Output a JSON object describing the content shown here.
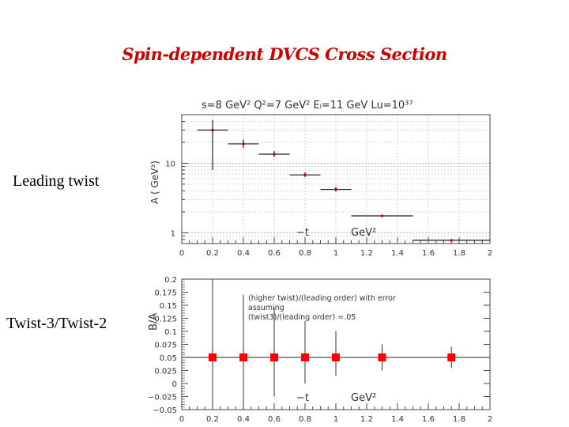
{
  "slide": {
    "title": "Spin-dependent DVCS  Cross Section",
    "label_top": "Leading twist",
    "label_bottom": "Twist-3/Twist-2"
  },
  "chart_data": [
    {
      "type": "scatter",
      "title": "s=8 GeV²   Q²=7 GeV²   Eₗ=11 GeV   Lu=10³⁷",
      "ylabel": "A  ( GeV³)",
      "xlabel_t": "−t",
      "xlabel_unit": "GeV²",
      "log_y": true,
      "xlim": [
        0,
        2
      ],
      "ylim": [
        0.7,
        50
      ],
      "x_ticks": [
        "0",
        "0.2",
        "0.4",
        "0.6",
        "0.8",
        "1",
        "1.2",
        "1.4",
        "1.6",
        "1.8",
        "2"
      ],
      "y_ticks": [
        "1",
        "10"
      ],
      "grid": true,
      "marker_color": "#cc0000",
      "series": [
        {
          "x": [
            0.2,
            0.4,
            0.6,
            0.8,
            1.0,
            1.3,
            1.75
          ],
          "x_low": [
            0.1,
            0.3,
            0.5,
            0.7,
            0.9,
            1.1,
            1.5
          ],
          "x_high": [
            0.3,
            0.5,
            0.7,
            0.9,
            1.1,
            1.5,
            2.0
          ],
          "y": [
            30,
            19,
            13.5,
            6.8,
            4.2,
            1.75,
            0.78
          ],
          "y_low": [
            8,
            16.5,
            12.3,
            6.3,
            3.9,
            1.7,
            0.76
          ],
          "y_high": [
            42,
            22,
            15,
            7.4,
            4.6,
            1.8,
            0.8
          ]
        }
      ]
    },
    {
      "type": "scatter",
      "ylabel": "B/A",
      "xlabel_t": "−t",
      "xlabel_unit": "GeV²",
      "xlim": [
        0,
        2
      ],
      "ylim": [
        -0.05,
        0.2
      ],
      "x_ticks": [
        "0",
        "0.2",
        "0.4",
        "0.6",
        "0.8",
        "1",
        "1.2",
        "1.4",
        "1.6",
        "1.8",
        "2"
      ],
      "y_ticks": [
        "−0.05",
        "−0.025",
        "0",
        "0.025",
        "0.05",
        "0.075",
        "0.1",
        "0.125",
        "0.15",
        "0.175",
        "0.2"
      ],
      "reference_line": 0.05,
      "annotation": [
        "(higher twist)/(leading order)     with error",
        "assuming",
        "(twist3)/(leading order) =.05"
      ],
      "marker_color": "#ff0000",
      "series": [
        {
          "x": [
            0.2,
            0.4,
            0.6,
            0.8,
            1.0,
            1.3,
            1.75
          ],
          "y": [
            0.05,
            0.05,
            0.05,
            0.05,
            0.05,
            0.05,
            0.05
          ],
          "y_low": [
            -0.05,
            -0.05,
            -0.025,
            0.0,
            0.015,
            0.025,
            0.03
          ],
          "y_high": [
            0.2,
            0.17,
            0.145,
            0.12,
            0.1,
            0.075,
            0.07
          ]
        }
      ]
    }
  ]
}
